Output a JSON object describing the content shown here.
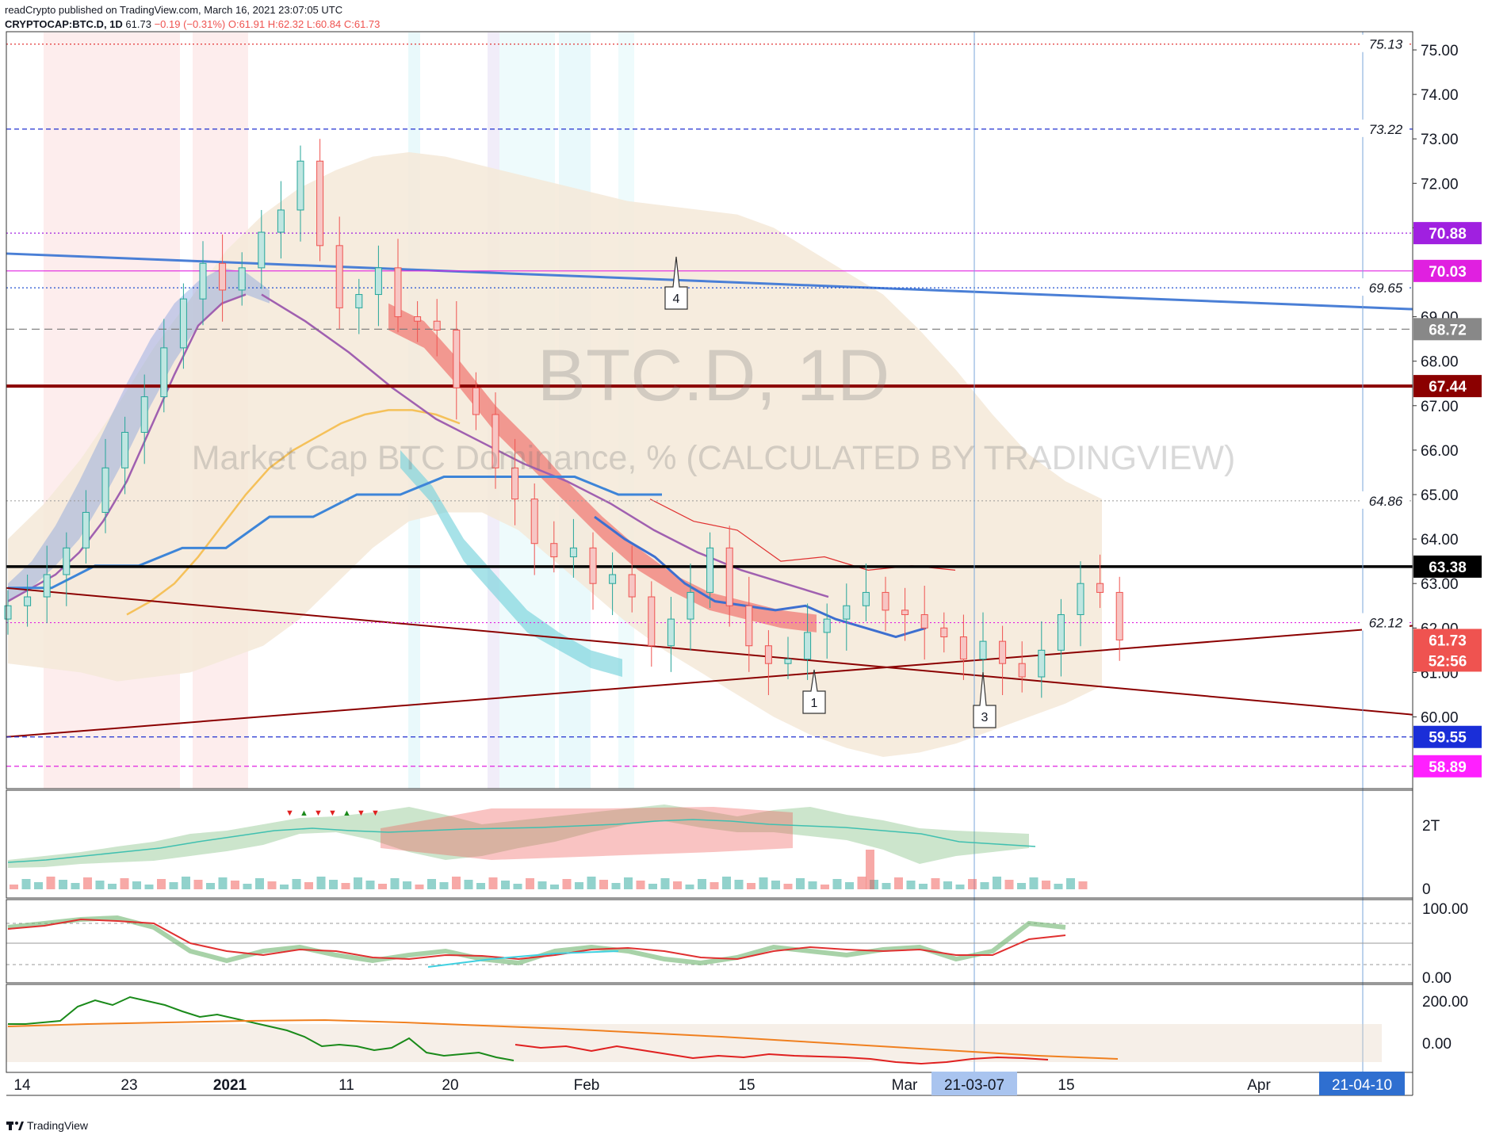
{
  "header": {
    "publisher_line": "readCrypto published on TradingView.com, March 16, 2021 23:07:05 UTC",
    "symbol": "CRYPTOCAP:BTC.D, 1D",
    "last": "61.73",
    "change": "−0.19 (−0.31%)",
    "ohlc": "O:61.91 H:62.32 L:60.84 C:61.73"
  },
  "watermark": {
    "title": "BTC.D, 1D",
    "subtitle": "Market Cap BTC Dominance, % (CALCULATED BY TRADINGVIEW)"
  },
  "footer": {
    "brand": "TradingView"
  },
  "colors": {
    "up": "#26a69a",
    "down": "#ef5350",
    "trend_blue": "#4a7fd6",
    "dark_red": "#8b0000",
    "magenta": "#e020e0",
    "purple_ma": "#a060b0",
    "yellow_ma": "#f5c15a",
    "cloud": "#f5e9d8"
  },
  "chart_data": [
    {
      "type": "candlestick",
      "name": "main",
      "xlabels": [
        "14",
        "23",
        "2021",
        "11",
        "20",
        "Feb",
        "15",
        "Mar",
        "21-03-07",
        "15",
        "Apr",
        "21-04-10"
      ],
      "ylim": [
        58.6,
        75.3
      ],
      "y_ticks": [
        "75.00",
        "74.00",
        "73.00",
        "72.00",
        "71.00",
        "69.00",
        "68.00",
        "67.00",
        "66.00",
        "65.00",
        "64.00",
        "63.00",
        "62.00",
        "61.00",
        "60.00"
      ],
      "close_approx": [
        62.5,
        62.7,
        63.2,
        63.8,
        64.6,
        65.6,
        66.4,
        67.2,
        68.3,
        69.4,
        70.2,
        69.6,
        70.1,
        70.9,
        71.4,
        72.5,
        70.6,
        69.2,
        69.5,
        70.1,
        69.0,
        68.9,
        68.7,
        67.4,
        66.8,
        65.6,
        64.9,
        63.9,
        63.6,
        63.8,
        63.0,
        63.2,
        62.7,
        61.6,
        62.2,
        62.8,
        63.8,
        62.5,
        61.6,
        61.2,
        61.3,
        61.9,
        62.2,
        62.5,
        62.8,
        62.4,
        62.3,
        62.0,
        61.8,
        61.3,
        61.7,
        61.2,
        60.9,
        61.5,
        62.3,
        63.0,
        62.8,
        61.73
      ],
      "price_labels": [
        {
          "value": "75.13"
        },
        {
          "value": "73.22"
        },
        {
          "value": "70.88"
        },
        {
          "value": "70.03"
        },
        {
          "value": "69.65"
        },
        {
          "value": "68.72"
        },
        {
          "value": "67.44"
        },
        {
          "value": "64.86"
        },
        {
          "value": "63.38"
        },
        {
          "value": "62.12"
        },
        {
          "value": "61.73"
        },
        {
          "value": "52:56"
        },
        {
          "value": "59.55"
        },
        {
          "value": "58.89"
        }
      ],
      "annotations": [
        "1",
        "3",
        "4"
      ]
    },
    {
      "type": "area",
      "name": "volume-pane",
      "y_ticks": [
        "2T",
        "0"
      ]
    },
    {
      "type": "line",
      "name": "stochastic-pane",
      "y_ticks": [
        "100.00",
        "0.00"
      ]
    },
    {
      "type": "line",
      "name": "cci-pane",
      "y_ticks": [
        "200.00",
        "0.00"
      ]
    }
  ]
}
